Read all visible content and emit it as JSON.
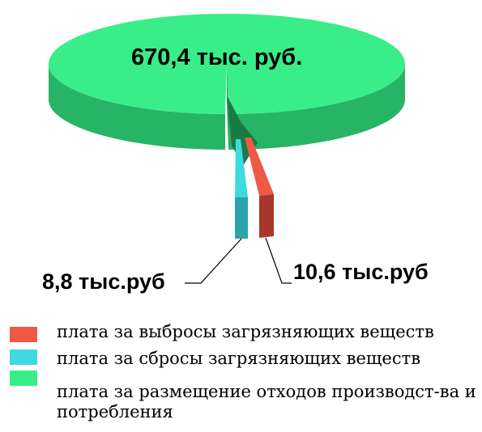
{
  "chart_data": {
    "type": "pie",
    "style": "3d-exploded",
    "slices": [
      {
        "label": "плата за выбросы загрязняющих веществ",
        "value": 10.6,
        "value_label": "10,6 тыс.руб",
        "color": "#ee5a45",
        "side_color": "#a8382b"
      },
      {
        "label": "плата за сбросы загрязняющих веществ",
        "value": 8.8,
        "value_label": "8,8 тыс.руб",
        "color": "#3fd9e2",
        "side_color": "#2aa3ab"
      },
      {
        "label": "плата за размещение отходов производст-ва и потребления",
        "value": 670.4,
        "value_label": "670,4 тыс. руб.",
        "color": "#39ee88",
        "side_color": "#27b466"
      }
    ],
    "legend": {
      "placement": "bottom-left",
      "items": [
        {
          "text": "плата за выбросы загрязняющих веществ",
          "color": "#ee5a45"
        },
        {
          "text": "плата за сбросы загрязняющих веществ",
          "color": "#3fd9e2"
        },
        {
          "text": "плата за размещение отходов производст-ва и потребления",
          "color": "#39ee88"
        }
      ]
    }
  }
}
